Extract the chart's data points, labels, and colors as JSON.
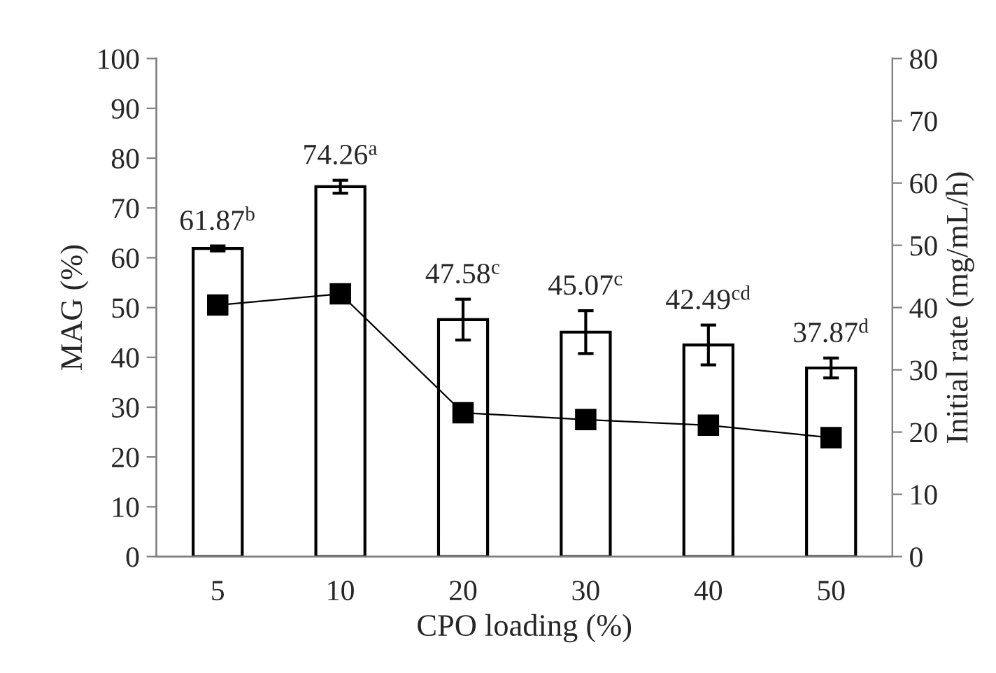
{
  "chart_data": {
    "type": "bar",
    "xlabel": "CPO loading (%)",
    "ylabel": "MAG (%)",
    "y2label": "Initial rate (mg/mL/h)",
    "categories": [
      "5",
      "10",
      "20",
      "30",
      "40",
      "50"
    ],
    "series": [
      {
        "color": "#ffffff",
        "values": [
          61.87,
          74.26,
          47.58,
          45.07,
          42.49,
          37.87
        ],
        "errors": [
          0.5,
          1.3,
          4.1,
          4.3,
          4.0,
          2.0
        ],
        "value_labels": [
          "61.87$^{b}$",
          "74.26$^{a}$",
          "47.58$^{c}$",
          "45.07$^{c}$",
          "42.49$^{cd}$",
          "37.87$^{d}$"
        ]
      },
      {
        "type": "line",
        "axis": "y2",
        "color": "#000000",
        "marker": "square",
        "values": [
          40.4,
          42.2,
          23.1,
          22.0,
          21.1,
          19.1
        ]
      }
    ],
    "ylim": [
      0,
      100
    ],
    "yticks": [
      0,
      10,
      20,
      30,
      40,
      50,
      60,
      70,
      80,
      90,
      100
    ],
    "y2lim": [
      0,
      80
    ],
    "y2ticks": [
      0,
      10,
      20,
      30,
      40,
      50,
      60,
      70,
      80
    ],
    "grid": false,
    "legend": false
  }
}
